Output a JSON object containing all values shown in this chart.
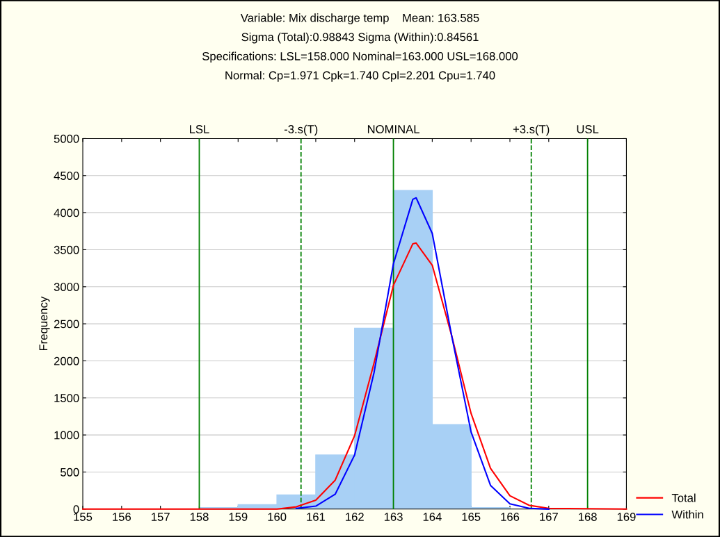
{
  "chart_data": {
    "type": "histogram",
    "title": "Variable: Mix discharge temp    Mean: 163.585\nSigma (Total):0.98843 Sigma (Within):0.84561\nSpecifications: LSL=158.000 Nominal=163.000 USL=168.000\nNormal: Cp=1.971 Cpk=1.740 Cpl=2.201 Cpu=1.740",
    "ylabel": "Frequency",
    "bins": [
      155,
      156,
      157,
      158,
      159,
      160,
      161,
      162,
      163,
      164,
      165,
      166,
      167,
      168,
      169
    ],
    "values": [
      0,
      0,
      0,
      20,
      60,
      190,
      730,
      2440,
      4300,
      1140,
      20,
      0,
      0,
      0
    ],
    "color": "#a8d0f5",
    "series": [
      {
        "name": "Total",
        "type": "line",
        "color": "#ff0000",
        "x": [
          155,
          159.5,
          160,
          160.5,
          161,
          161.5,
          162,
          162.5,
          163,
          163.5,
          163.585,
          164,
          164.5,
          165,
          165.5,
          166,
          166.5,
          167,
          169
        ],
        "values": [
          0,
          0,
          0,
          30,
          120,
          390,
          990,
          1970,
          3020,
          3580,
          3590,
          3290,
          2340,
          1290,
          550,
          180,
          50,
          10,
          0
        ]
      },
      {
        "name": "Within",
        "type": "line",
        "color": "#0000ff",
        "x": [
          160.5,
          161,
          161.5,
          162,
          162.5,
          163,
          163.5,
          163.585,
          164,
          164.5,
          165,
          165.5,
          166,
          166.5,
          167
        ],
        "values": [
          10,
          40,
          200,
          730,
          1840,
          3310,
          4180,
          4200,
          3720,
          2340,
          1040,
          320,
          70,
          10,
          0
        ]
      }
    ],
    "ref_lines": [
      {
        "axis": "x",
        "value": 158,
        "label": "LSL",
        "color": "#008000",
        "line_style": "solid"
      },
      {
        "axis": "x",
        "value": 160.62,
        "label": "-3.s(T)",
        "color": "#008000",
        "line_style": "dashed"
      },
      {
        "axis": "x",
        "value": 163,
        "label": "NOMINAL",
        "color": "#008000",
        "line_style": "solid"
      },
      {
        "axis": "x",
        "value": 166.55,
        "label": "+3.s(T)",
        "color": "#008000",
        "line_style": "dashed"
      },
      {
        "axis": "x",
        "value": 168,
        "label": "USL",
        "color": "#008000",
        "line_style": "solid"
      }
    ],
    "xlim": [
      155,
      169
    ],
    "xticks": [
      155,
      156,
      157,
      158,
      159,
      160,
      161,
      162,
      163,
      164,
      165,
      166,
      167,
      168,
      169
    ],
    "ylim": [
      0,
      5000
    ],
    "yticks": [
      0,
      500,
      1000,
      1500,
      2000,
      2500,
      3000,
      3500,
      4000,
      4500,
      5000
    ],
    "grid": "y",
    "legend": "bottom right"
  }
}
